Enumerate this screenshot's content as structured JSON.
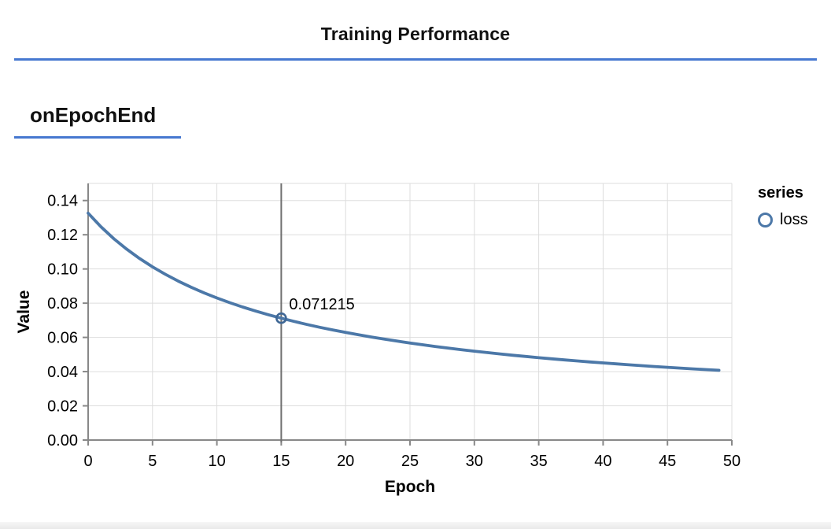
{
  "page": {
    "title": "Training Performance",
    "section_heading": "onEpochEnd"
  },
  "colors": {
    "accent_blue": "#4678d0",
    "series_line": "#4c78a8",
    "marker_stroke": "#3f6795",
    "hover_rule": "#6f6f6f",
    "grid": "#dddddd",
    "axis": "#888888",
    "text": "#000000"
  },
  "legend": {
    "title": "series",
    "items": [
      {
        "label": "loss",
        "marker": "circle-outline-icon"
      }
    ]
  },
  "chart_data": {
    "type": "line",
    "title": "",
    "xlabel": "Epoch",
    "ylabel": "Value",
    "xlim": [
      0,
      50
    ],
    "ylim": [
      0,
      0.15
    ],
    "x_ticks": [
      0,
      5,
      10,
      15,
      20,
      25,
      30,
      35,
      40,
      45,
      50
    ],
    "y_ticks": [
      0,
      0.02,
      0.04,
      0.06,
      0.08,
      0.1,
      0.12,
      0.14
    ],
    "grid": true,
    "legend_position": "right",
    "series": [
      {
        "name": "loss",
        "x": [
          0,
          1,
          2,
          3,
          4,
          5,
          6,
          7,
          8,
          9,
          10,
          11,
          12,
          13,
          14,
          15,
          16,
          17,
          18,
          19,
          20,
          21,
          22,
          23,
          24,
          25,
          26,
          27,
          28,
          29,
          30,
          31,
          32,
          33,
          34,
          35,
          36,
          37,
          38,
          39,
          40,
          41,
          42,
          43,
          44,
          45,
          46,
          47,
          48,
          49
        ],
        "y": [
          0.1326,
          0.12462,
          0.11766,
          0.11153,
          0.10609,
          0.10123,
          0.09686,
          0.09291,
          0.08932,
          0.08606,
          0.08306,
          0.08031,
          0.07778,
          0.07543,
          0.07325,
          0.071215,
          0.06933,
          0.06756,
          0.06591,
          0.06435,
          0.06289,
          0.06151,
          0.06021,
          0.05898,
          0.05782,
          0.05671,
          0.05566,
          0.05466,
          0.05371,
          0.0528,
          0.05194,
          0.05112,
          0.05033,
          0.04957,
          0.04885,
          0.04815,
          0.04749,
          0.04685,
          0.04623,
          0.04564,
          0.04507,
          0.04452,
          0.04399,
          0.04348,
          0.04298,
          0.04251,
          0.04205,
          0.0416,
          0.04117,
          0.04075
        ]
      }
    ],
    "highlighted_point": {
      "x": 15,
      "y": 0.071215,
      "label": "0.071215"
    }
  }
}
